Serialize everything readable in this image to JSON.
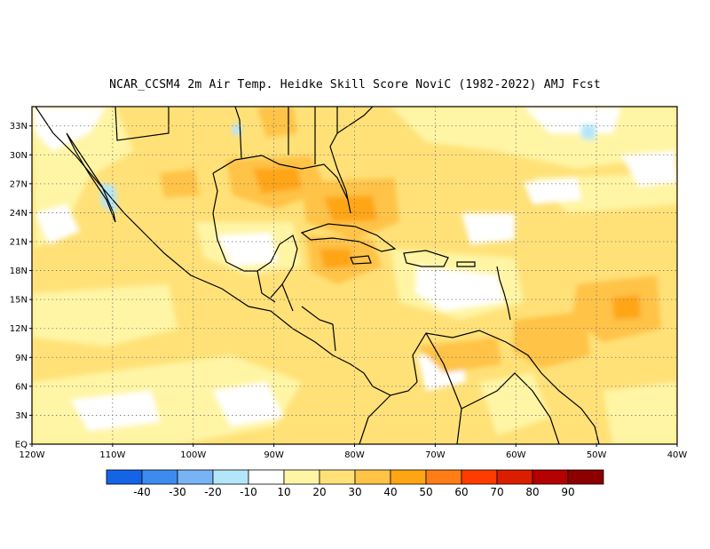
{
  "title": "NCAR_CCSM4  2m Air Temp. Heidke Skill Score NoviC (1982-2022) AMJ Fcst",
  "lat_labels": [
    "33N",
    "30N",
    "27N",
    "24N",
    "21N",
    "18N",
    "15N",
    "12N",
    "9N",
    "6N",
    "3N",
    "EQ"
  ],
  "lon_labels": [
    "120W",
    "110W",
    "100W",
    "90W",
    "80W",
    "70W",
    "60W",
    "50W",
    "40W"
  ],
  "colorbar": {
    "labels": [
      "-40",
      "-30",
      "-20",
      "-10",
      "10",
      "20",
      "30",
      "40",
      "50",
      "60",
      "70",
      "80",
      "90"
    ],
    "colors": [
      "#1464e6",
      "#3c8cf0",
      "#78b4f5",
      "#b4e6fa",
      "#ffffff",
      "#fff5a5",
      "#ffe178",
      "#ffc346",
      "#ffa514",
      "#ff7d14",
      "#ff3c00",
      "#dc1e00",
      "#b40000",
      "#8c0000"
    ]
  },
  "map_data": {
    "variable": "2m Air Temp. Heidke Skill Score",
    "lon_range": [
      -120,
      -40
    ],
    "lat_range": [
      0,
      35
    ],
    "grid_lines": "dotted",
    "coastlines": true
  }
}
